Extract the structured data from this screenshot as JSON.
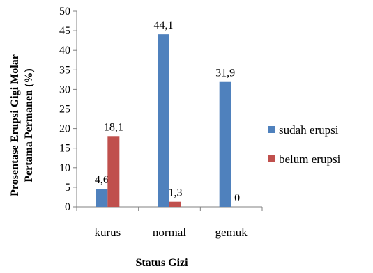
{
  "chart_data": {
    "type": "bar",
    "categories": [
      "kurus",
      "normal",
      "gemuk"
    ],
    "series": [
      {
        "name": "sudah erupsi",
        "color": "#4f81bd",
        "values": [
          4.6,
          44.1,
          31.9
        ],
        "labels": [
          "4,6",
          "44,1",
          "31,9"
        ]
      },
      {
        "name": "belum erupsi",
        "color": "#c0504d",
        "values": [
          18.1,
          1.3,
          0
        ],
        "labels": [
          "18,1",
          "1,3",
          "0"
        ]
      }
    ],
    "xlabel": "Status Gizi",
    "ylabel_lines": [
      "Prosentase Erupsi Gigi Molar",
      "Pertama Permanen (%)"
    ],
    "ylim": [
      0,
      50
    ],
    "yticks": [
      0,
      5,
      10,
      15,
      20,
      25,
      30,
      35,
      40,
      45,
      50
    ],
    "grid": false,
    "legend_position": "right"
  }
}
